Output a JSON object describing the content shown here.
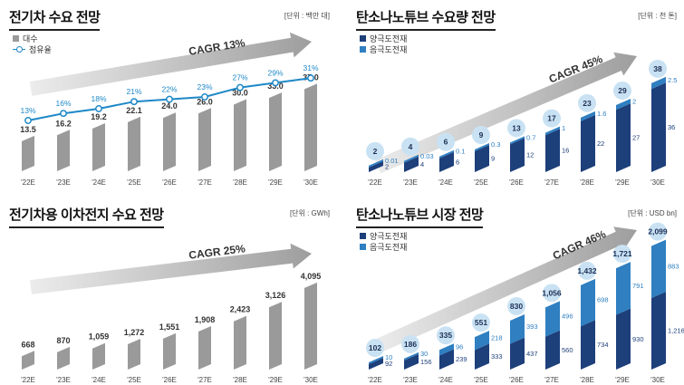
{
  "chart_data": [
    {
      "type": "bar",
      "title": "전기차 수요 전망",
      "unit": "[단위 : 백만 대]",
      "cagr": "CAGR 13%",
      "categories": [
        "'22E",
        "'23E",
        "'24E",
        "'25E",
        "'26E",
        "'27E",
        "'28E",
        "'29E",
        "'30E"
      ],
      "series": [
        {
          "name": "대수",
          "values": [
            13.5,
            16.2,
            19.2,
            22.1,
            24.0,
            26.0,
            30.0,
            33.0,
            37.0
          ],
          "labels": [
            "13.5",
            "16.2",
            "19.2",
            "22.1",
            "24.0",
            "26.0",
            "30.0",
            "33.0",
            "37.0"
          ]
        },
        {
          "name": "점유율",
          "type": "line",
          "values": [
            13,
            16,
            18,
            21,
            22,
            23,
            27,
            29,
            31
          ],
          "labels": [
            "13%",
            "16%",
            "18%",
            "21%",
            "22%",
            "23%",
            "27%",
            "29%",
            "31%"
          ]
        }
      ],
      "colors": {
        "bar": "#9a9a9a",
        "line": "#1e88c8"
      }
    },
    {
      "type": "bar",
      "title": "탄소나노튜브 수요량 전망",
      "unit": "[단위 : 천 톤]",
      "cagr": "CAGR 45%",
      "categories": [
        "'22E",
        "'23E",
        "'24E",
        "'25E",
        "'26E",
        "'27E",
        "'28E",
        "'29E",
        "'30E"
      ],
      "totals": [
        2,
        4,
        6,
        9,
        13,
        17,
        23,
        29,
        38
      ],
      "series": [
        {
          "name": "양극도전재",
          "values": [
            2,
            4,
            6,
            9,
            12,
            16,
            22,
            27,
            36
          ],
          "labels": [
            "2",
            "4",
            "6",
            "9",
            "12",
            "16",
            "22",
            "27",
            "36"
          ]
        },
        {
          "name": "음극도전재",
          "values": [
            0.01,
            0.03,
            0.1,
            0.3,
            0.7,
            1,
            1.6,
            2,
            2.5
          ],
          "labels": [
            "0.01",
            "0.03",
            "0.1",
            "0.3",
            "0.7",
            "1",
            "1.6",
            "2",
            "2.5"
          ]
        }
      ],
      "colors": {
        "dark": "#1d3f7a",
        "light": "#2f7fc1",
        "bubble": "#c9e2f3"
      }
    },
    {
      "type": "bar",
      "title": "전기차용 이차전지 수요 전망",
      "unit": "[단위 : GWh]",
      "cagr": "CAGR 25%",
      "categories": [
        "'22E",
        "'23E",
        "'24E",
        "'25E",
        "'26E",
        "'27E",
        "'28E",
        "'29E",
        "'30E"
      ],
      "series": [
        {
          "name": "",
          "values": [
            668,
            870,
            1059,
            1272,
            1551,
            1908,
            2423,
            3126,
            4095
          ],
          "labels": [
            "668",
            "870",
            "1,059",
            "1,272",
            "1,551",
            "1,908",
            "2,423",
            "3,126",
            "4,095"
          ]
        }
      ],
      "colors": {
        "bar": "#9a9a9a"
      }
    },
    {
      "type": "bar",
      "title": "탄소나노튜브 시장 전망",
      "unit": "[단위 : USD bn]",
      "cagr": "CAGR 46%",
      "categories": [
        "'22E",
        "'23E",
        "'24E",
        "'25E",
        "'26E",
        "'27E",
        "'28E",
        "'29E",
        "'30E"
      ],
      "totals": [
        "102",
        "186",
        "335",
        "551",
        "830",
        "1,056",
        "1,432",
        "1,721",
        "2,099"
      ],
      "series": [
        {
          "name": "양극도전재",
          "values": [
            92,
            156,
            239,
            333,
            437,
            560,
            734,
            930,
            1216
          ],
          "labels": [
            "92",
            "156",
            "239",
            "333",
            "437",
            "560",
            "734",
            "930",
            "1,216"
          ]
        },
        {
          "name": "음극도전재",
          "values": [
            10,
            30,
            96,
            218,
            393,
            496,
            698,
            791,
            883
          ],
          "labels": [
            "10",
            "30",
            "96",
            "218",
            "393",
            "496",
            "698",
            "791",
            "883"
          ]
        }
      ],
      "totals_values": [
        102,
        186,
        335,
        551,
        830,
        1056,
        1432,
        1721,
        2099
      ],
      "colors": {
        "dark": "#1d3f7a",
        "light": "#2f7fc1",
        "bubble": "#c9e2f3"
      }
    }
  ]
}
